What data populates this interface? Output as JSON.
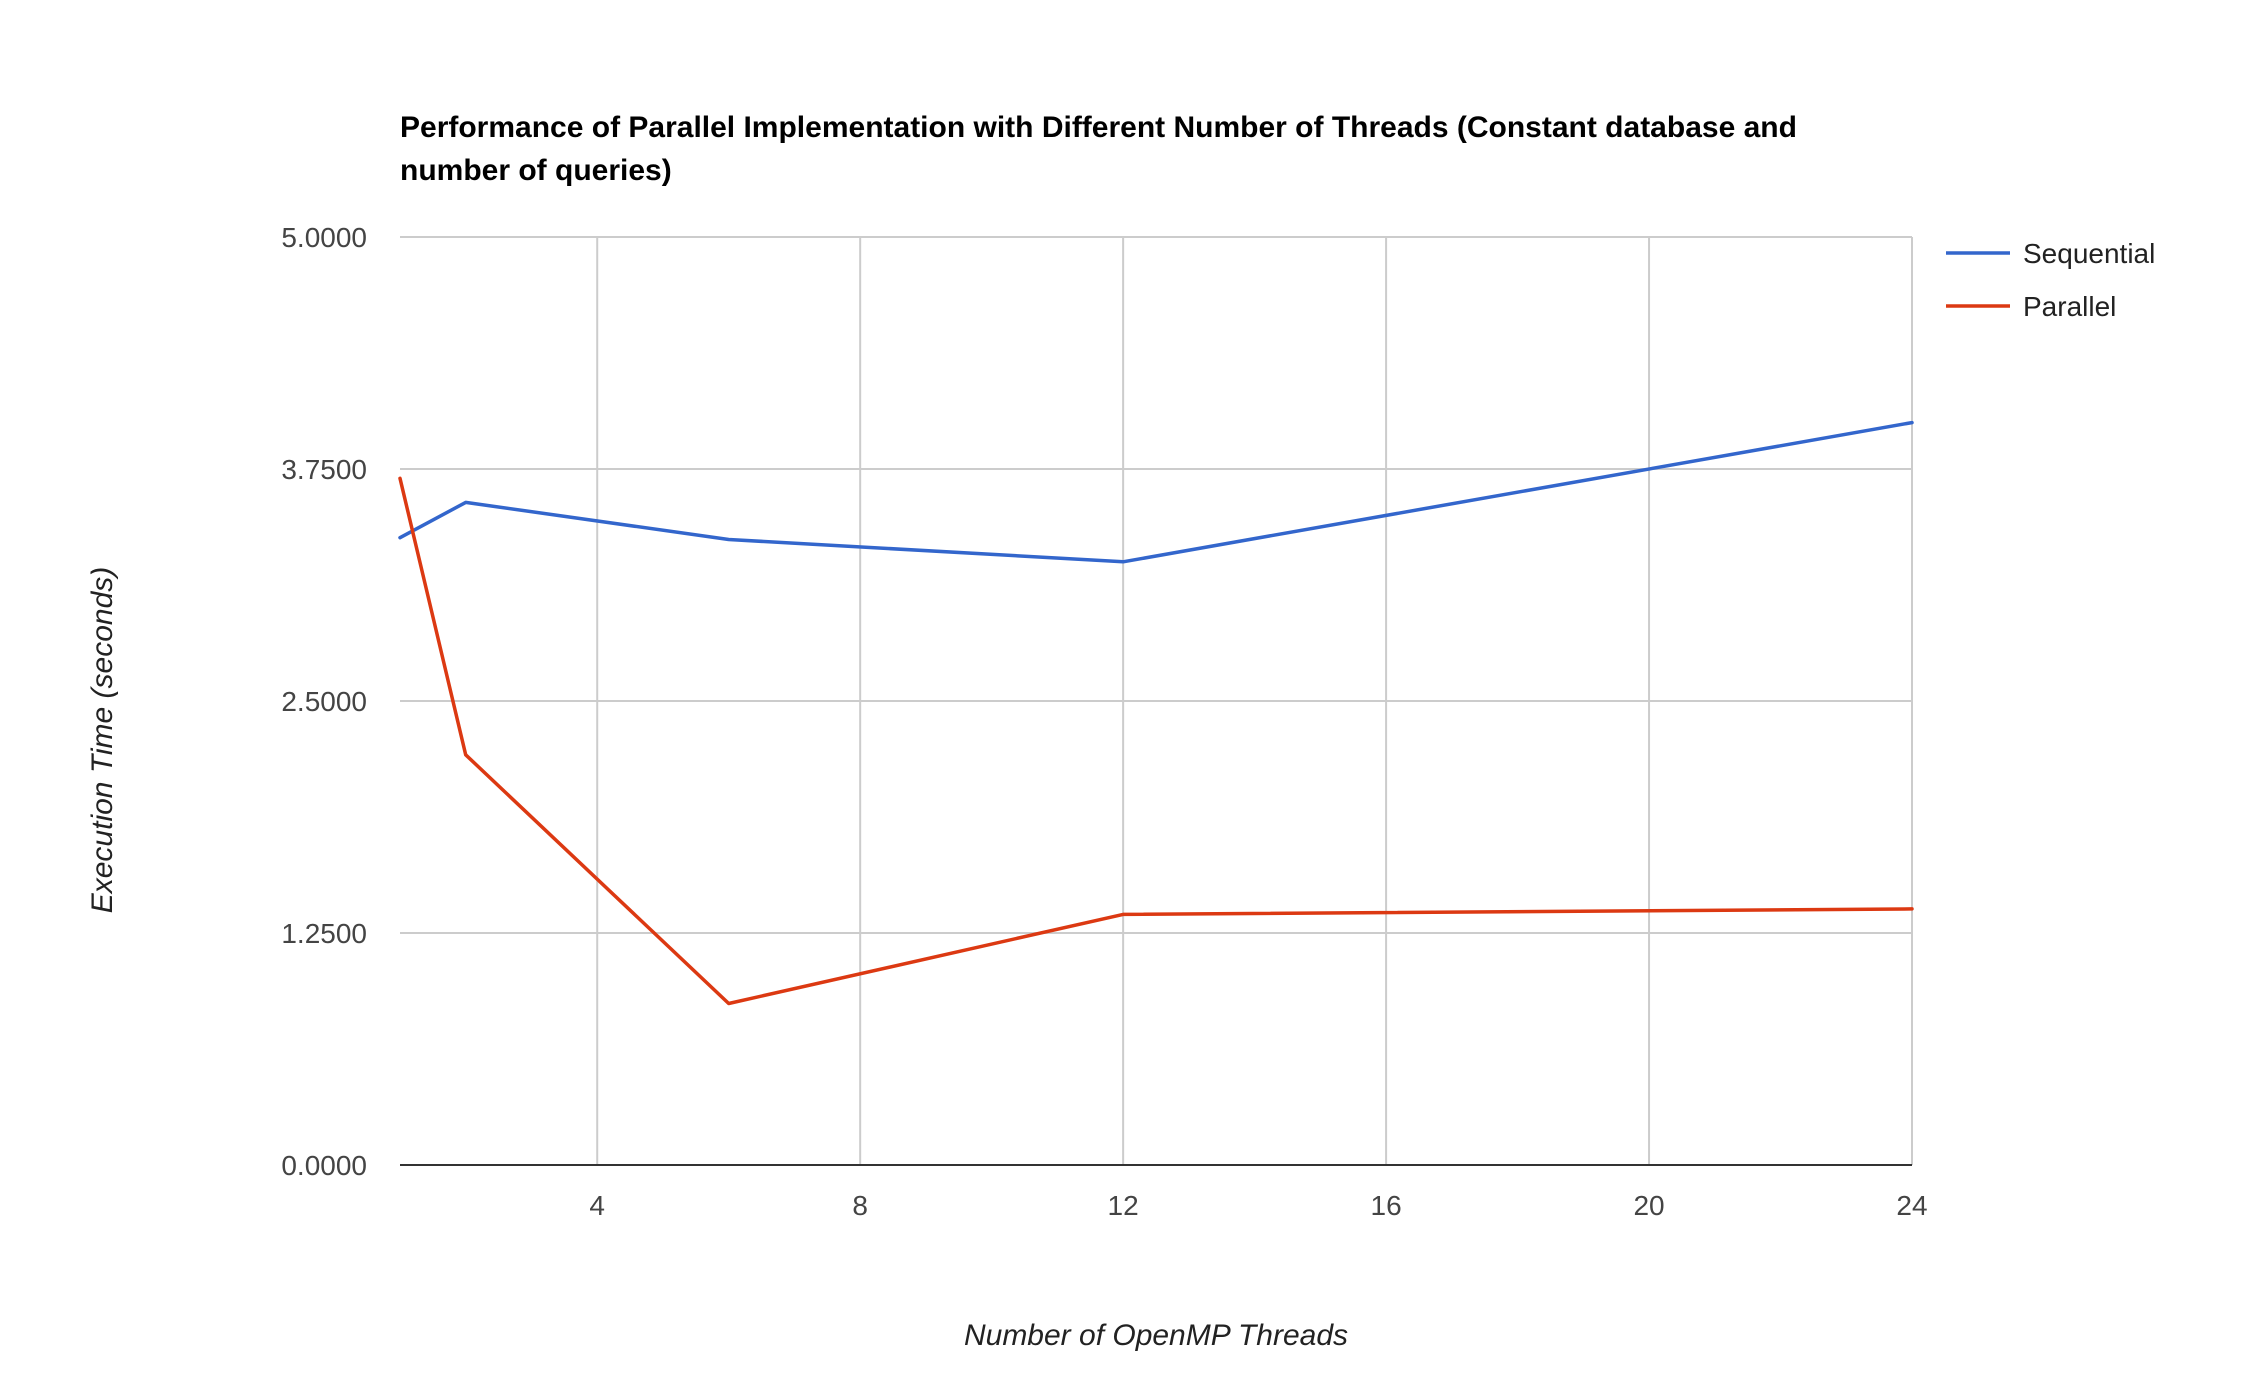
{
  "chart_data": {
    "type": "line",
    "title_lines": [
      "Performance of Parallel Implementation with Different Number of Threads (Constant database and",
      "number of queries)"
    ],
    "xlabel": "Number of OpenMP Threads",
    "ylabel": "Execution Time (seconds)",
    "xlim": [
      1,
      24
    ],
    "ylim": [
      0,
      5
    ],
    "x_ticks": [
      4,
      8,
      12,
      16,
      20,
      24
    ],
    "x_tick_labels": [
      "4",
      "8",
      "12",
      "16",
      "20",
      "24"
    ],
    "y_ticks": [
      0,
      1.25,
      2.5,
      3.75,
      5
    ],
    "y_tick_labels": [
      "0.0000",
      "1.2500",
      "2.5000",
      "3.7500",
      "5.0000"
    ],
    "grid": true,
    "legend_position": "right",
    "x": [
      1,
      2,
      6,
      12,
      24
    ],
    "series": [
      {
        "name": "Sequential",
        "color": "#3366cc",
        "values": [
          3.38,
          3.57,
          3.37,
          3.25,
          4.0
        ]
      },
      {
        "name": "Parallel",
        "color": "#dc3912",
        "values": [
          3.7,
          2.21,
          0.87,
          1.35,
          1.38
        ]
      }
    ]
  }
}
